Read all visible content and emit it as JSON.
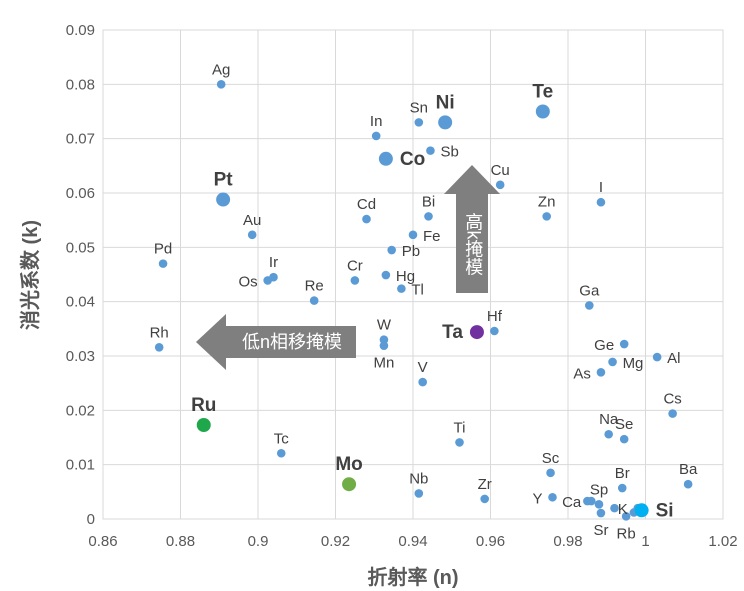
{
  "chart_data": {
    "type": "scatter",
    "xlabel": "折射率 (n)",
    "ylabel": "消光系数 (k)",
    "xlim": [
      0.86,
      1.02
    ],
    "ylim": [
      0,
      0.09
    ],
    "xticks": [
      "0.86",
      "0.88",
      "0.9",
      "0.92",
      "0.94",
      "0.96",
      "0.98",
      "1",
      "1.02"
    ],
    "yticks": [
      "0",
      "0.01",
      "0.02",
      "0.03",
      "0.04",
      "0.05",
      "0.06",
      "0.07",
      "0.08",
      "0.09"
    ],
    "grid": true,
    "colors": {
      "default": "#5B9BD5",
      "Ru": "#1FA84B",
      "Mo": "#70AD47",
      "Ta": "#7030A0",
      "Si": "#00B0F0"
    },
    "points": [
      {
        "name": "Ag",
        "x": 0.8905,
        "y": 0.08,
        "label_pos": "above"
      },
      {
        "name": "Ni",
        "x": 0.9483,
        "y": 0.073,
        "big": true,
        "label_pos": "above"
      },
      {
        "name": "Te",
        "x": 0.9735,
        "y": 0.075,
        "big": true,
        "label_pos": "above"
      },
      {
        "name": "In",
        "x": 0.9305,
        "y": 0.0705,
        "label_pos": "above"
      },
      {
        "name": "Sn",
        "x": 0.9415,
        "y": 0.073,
        "label_pos": "above"
      },
      {
        "name": "Sb",
        "x": 0.9445,
        "y": 0.0678,
        "label_pos": "right"
      },
      {
        "name": "Co",
        "x": 0.933,
        "y": 0.0663,
        "big": true,
        "label_pos": "right"
      },
      {
        "name": "Pt",
        "x": 0.891,
        "y": 0.0588,
        "big": true,
        "label_pos": "above"
      },
      {
        "name": "Cu",
        "x": 0.9625,
        "y": 0.0615,
        "label_pos": "above"
      },
      {
        "name": "I",
        "x": 0.9885,
        "y": 0.0583,
        "label_pos": "above"
      },
      {
        "name": "Zn",
        "x": 0.9745,
        "y": 0.0557,
        "label_pos": "above"
      },
      {
        "name": "Bi",
        "x": 0.944,
        "y": 0.0557,
        "label_pos": "above"
      },
      {
        "name": "Cd",
        "x": 0.928,
        "y": 0.0552,
        "label_pos": "above"
      },
      {
        "name": "Au",
        "x": 0.8985,
        "y": 0.0523,
        "label_pos": "above"
      },
      {
        "name": "Fe",
        "x": 0.94,
        "y": 0.0523,
        "label_pos": "right"
      },
      {
        "name": "Pb",
        "x": 0.9345,
        "y": 0.0495,
        "label_pos": "right"
      },
      {
        "name": "Pd",
        "x": 0.8755,
        "y": 0.047,
        "label_pos": "above"
      },
      {
        "name": "Ir",
        "x": 0.904,
        "y": 0.0445,
        "label_pos": "above"
      },
      {
        "name": "Os",
        "x": 0.9025,
        "y": 0.0439,
        "label_pos": "left"
      },
      {
        "name": "Cr",
        "x": 0.925,
        "y": 0.0439,
        "label_pos": "above"
      },
      {
        "name": "Hg",
        "x": 0.933,
        "y": 0.0449,
        "label_pos": "right"
      },
      {
        "name": "Tl",
        "x": 0.937,
        "y": 0.0424,
        "label_pos": "right"
      },
      {
        "name": "Re",
        "x": 0.9145,
        "y": 0.0402,
        "label_pos": "above"
      },
      {
        "name": "Ga",
        "x": 0.9855,
        "y": 0.0393,
        "label_pos": "above"
      },
      {
        "name": "Hf",
        "x": 0.961,
        "y": 0.0346,
        "label_pos": "above"
      },
      {
        "name": "Ta",
        "x": 0.9565,
        "y": 0.0344,
        "big": true,
        "label_pos": "left"
      },
      {
        "name": "W",
        "x": 0.9325,
        "y": 0.033,
        "label_pos": "above"
      },
      {
        "name": "Mn",
        "x": 0.9325,
        "y": 0.0319,
        "label_pos": "below"
      },
      {
        "name": "Rh",
        "x": 0.8745,
        "y": 0.0316,
        "label_pos": "above"
      },
      {
        "name": "Ge",
        "x": 0.9945,
        "y": 0.0322,
        "label_pos": "left"
      },
      {
        "name": "Al",
        "x": 1.003,
        "y": 0.0298,
        "label_pos": "right"
      },
      {
        "name": "Mg",
        "x": 0.9915,
        "y": 0.0289,
        "label_pos": "right"
      },
      {
        "name": "As",
        "x": 0.9885,
        "y": 0.027,
        "label_pos": "left"
      },
      {
        "name": "V",
        "x": 0.9425,
        "y": 0.0252,
        "label_pos": "above"
      },
      {
        "name": "Cs",
        "x": 1.007,
        "y": 0.0194,
        "label_pos": "above"
      },
      {
        "name": "Ru",
        "x": 0.886,
        "y": 0.0173,
        "big": true,
        "label_pos": "above"
      },
      {
        "name": "Na",
        "x": 0.9905,
        "y": 0.0156,
        "label_pos": "above"
      },
      {
        "name": "Se",
        "x": 0.9945,
        "y": 0.0147,
        "label_pos": "above"
      },
      {
        "name": "Ti",
        "x": 0.952,
        "y": 0.0141,
        "label_pos": "above"
      },
      {
        "name": "Tc",
        "x": 0.906,
        "y": 0.0121,
        "label_pos": "above"
      },
      {
        "name": "Sc",
        "x": 0.9755,
        "y": 0.0085,
        "label_pos": "above"
      },
      {
        "name": "Mo",
        "x": 0.9235,
        "y": 0.0064,
        "big": true,
        "label_pos": "above"
      },
      {
        "name": "Ba",
        "x": 1.011,
        "y": 0.0064,
        "label_pos": "above"
      },
      {
        "name": "Br",
        "x": 0.994,
        "y": 0.0057,
        "label_pos": "above"
      },
      {
        "name": "Nb",
        "x": 0.9415,
        "y": 0.0047,
        "label_pos": "above"
      },
      {
        "name": "Zr",
        "x": 0.9585,
        "y": 0.0037,
        "label_pos": "above"
      },
      {
        "name": "Y",
        "x": 0.976,
        "y": 0.004,
        "label_pos": "left"
      },
      {
        "name": "Ca",
        "x": 0.986,
        "y": 0.0033,
        "label_pos": "left"
      },
      {
        "name": "Sp",
        "x": 0.988,
        "y": 0.0027,
        "label_pos": "above"
      },
      {
        "name": "K",
        "x": 0.998,
        "y": 0.002,
        "label_pos": "left"
      },
      {
        "name": "Sr",
        "x": 0.9885,
        "y": 0.0011,
        "label_pos": "below"
      },
      {
        "name": "Rb",
        "x": 0.995,
        "y": 0.0005,
        "label_pos": "below"
      },
      {
        "name": "Si",
        "x": 0.999,
        "y": 0.0016,
        "big": true,
        "label_pos": "right"
      }
    ],
    "extra_points": [
      {
        "x": 0.985,
        "y": 0.0033
      },
      {
        "x": 0.992,
        "y": 0.002
      },
      {
        "x": 0.997,
        "y": 0.0012
      }
    ],
    "annotations": [
      {
        "id": "arrow-low-n",
        "text": "低n相移掩模",
        "direction": "left"
      },
      {
        "id": "arrow-high-k",
        "text": "高k掩模",
        "direction": "up"
      }
    ]
  }
}
